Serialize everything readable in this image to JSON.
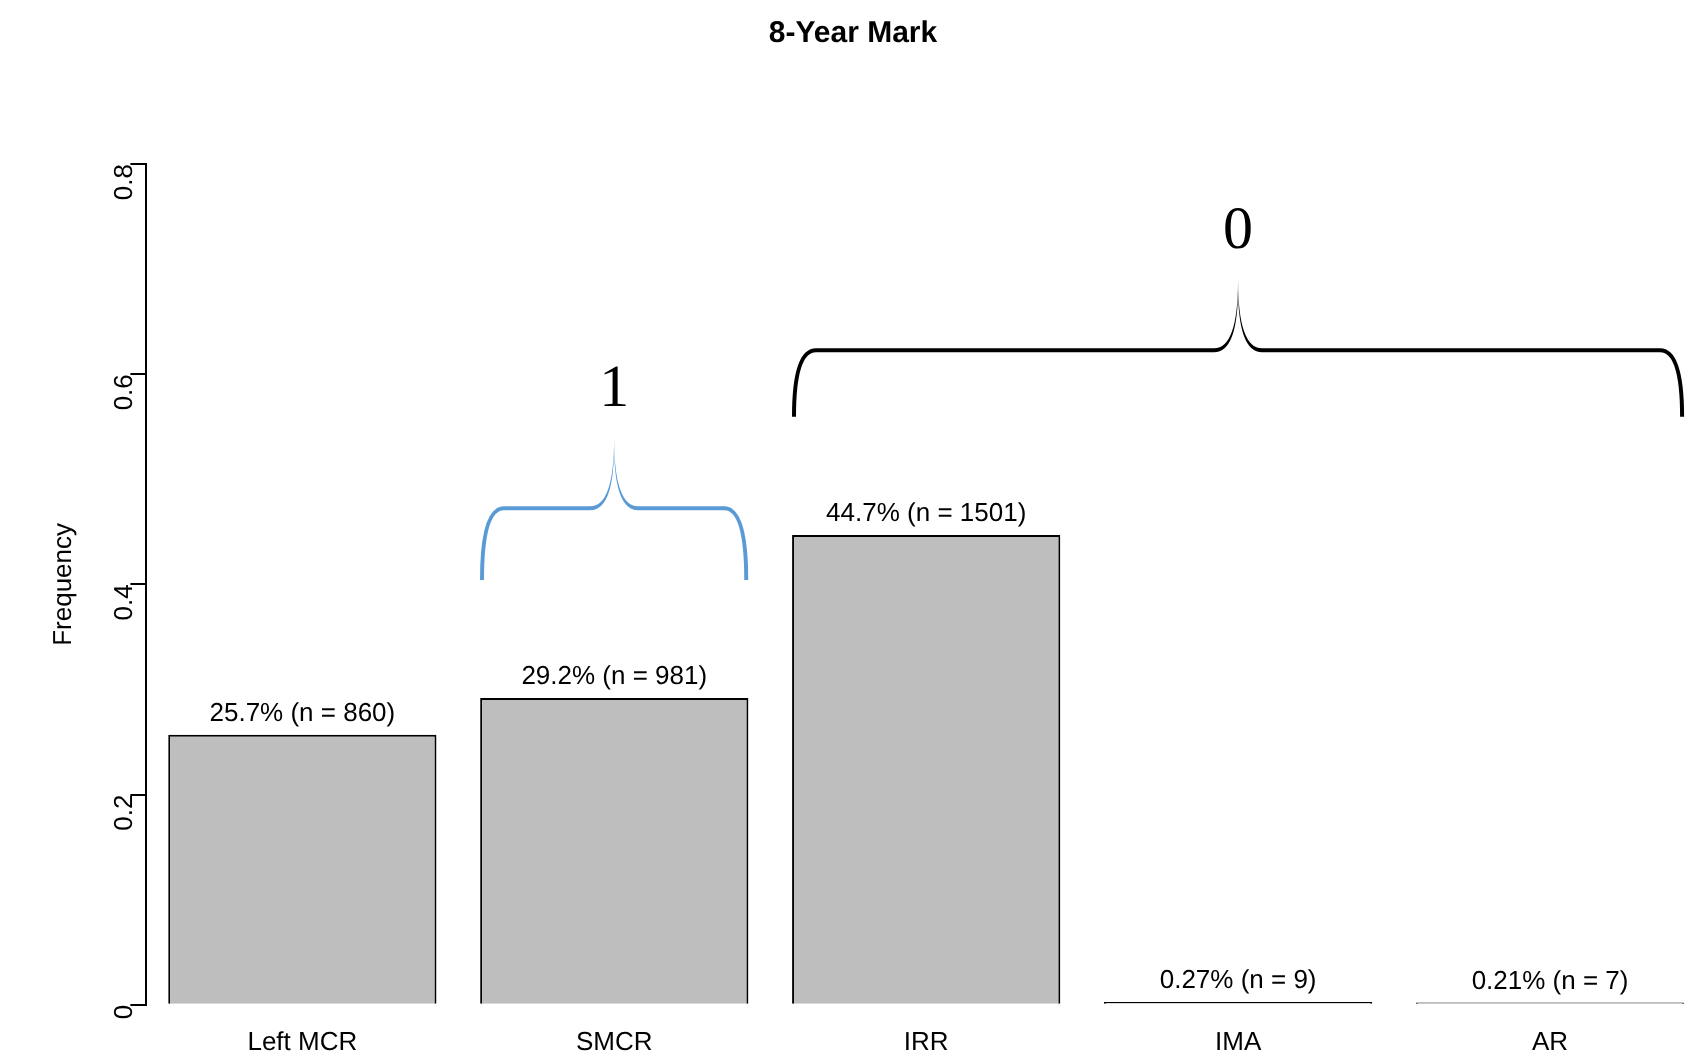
{
  "chart_data": {
    "type": "bar",
    "title": "8-Year Mark",
    "ylabel": "Frequency",
    "categories": [
      "Left MCR",
      "SMCR",
      "IRR",
      "IMA",
      "AR"
    ],
    "values": [
      0.257,
      0.292,
      0.447,
      0.0027,
      0.0021
    ],
    "color": "#bebebe",
    "value_labels": [
      "25.7% (n = 860)",
      "29.2% (n = 981)",
      "44.7% (n = 1501)",
      "0.27% (n = 9)",
      "0.21% (n = 7)"
    ],
    "ylim": [
      0,
      0.8
    ],
    "yticks": [
      0,
      0.2,
      0.4,
      0.6,
      0.8
    ],
    "grid": false,
    "legend": false,
    "annotations": [
      "1",
      "0"
    ]
  }
}
